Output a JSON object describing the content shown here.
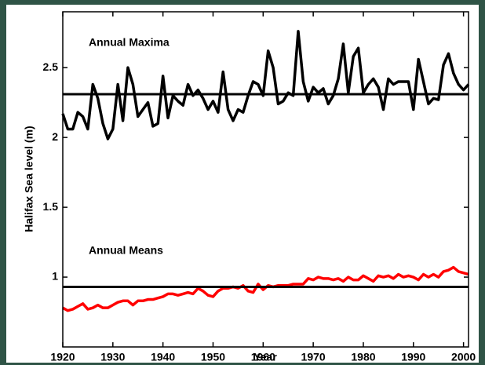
{
  "chart_data": {
    "type": "line",
    "xlabel": "Year",
    "ylabel": "Halifax Sea level (m)",
    "annotations": [
      "Annual Maxima",
      "Annual Means"
    ],
    "x": [
      1920,
      1921,
      1922,
      1923,
      1924,
      1925,
      1926,
      1927,
      1928,
      1929,
      1930,
      1931,
      1932,
      1933,
      1934,
      1935,
      1936,
      1937,
      1938,
      1939,
      1940,
      1941,
      1942,
      1943,
      1944,
      1945,
      1946,
      1947,
      1948,
      1949,
      1950,
      1951,
      1952,
      1953,
      1954,
      1955,
      1956,
      1957,
      1958,
      1959,
      1960,
      1961,
      1962,
      1963,
      1964,
      1965,
      1966,
      1967,
      1968,
      1969,
      1970,
      1971,
      1972,
      1973,
      1974,
      1975,
      1976,
      1977,
      1978,
      1979,
      1980,
      1981,
      1982,
      1983,
      1984,
      1985,
      1986,
      1987,
      1988,
      1989,
      1990,
      1991,
      1992,
      1993,
      1994,
      1995,
      1996,
      1997,
      1998,
      1999,
      2000,
      2001
    ],
    "series": [
      {
        "color": "#000000",
        "values": [
          2.17,
          2.06,
          2.06,
          2.18,
          2.15,
          2.06,
          2.38,
          2.28,
          2.1,
          1.99,
          2.06,
          2.38,
          2.12,
          2.5,
          2.38,
          2.15,
          2.2,
          2.25,
          2.08,
          2.1,
          2.44,
          2.14,
          2.3,
          2.26,
          2.23,
          2.38,
          2.3,
          2.34,
          2.28,
          2.2,
          2.26,
          2.18,
          2.47,
          2.2,
          2.12,
          2.2,
          2.18,
          2.3,
          2.4,
          2.38,
          2.3,
          2.62,
          2.5,
          2.24,
          2.26,
          2.32,
          2.3,
          2.76,
          2.4,
          2.26,
          2.36,
          2.32,
          2.35,
          2.24,
          2.3,
          2.42,
          2.67,
          2.32,
          2.58,
          2.64,
          2.32,
          2.38,
          2.42,
          2.36,
          2.2,
          2.42,
          2.38,
          2.4,
          2.4,
          2.4,
          2.2,
          2.56,
          2.4,
          2.24,
          2.28,
          2.27,
          2.52,
          2.6,
          2.46,
          2.38,
          2.34,
          2.38
        ]
      },
      {
        "color": "#ff0000",
        "values": [
          0.78,
          0.76,
          0.77,
          0.79,
          0.81,
          0.77,
          0.78,
          0.8,
          0.78,
          0.78,
          0.8,
          0.82,
          0.83,
          0.83,
          0.8,
          0.83,
          0.83,
          0.84,
          0.84,
          0.85,
          0.86,
          0.88,
          0.88,
          0.87,
          0.88,
          0.89,
          0.88,
          0.92,
          0.9,
          0.87,
          0.86,
          0.9,
          0.92,
          0.92,
          0.93,
          0.92,
          0.94,
          0.9,
          0.89,
          0.95,
          0.91,
          0.94,
          0.93,
          0.94,
          0.94,
          0.94,
          0.95,
          0.95,
          0.95,
          0.99,
          0.98,
          1.0,
          0.99,
          0.99,
          0.98,
          0.99,
          0.97,
          1.0,
          0.98,
          0.98,
          1.01,
          0.99,
          0.97,
          1.01,
          1.0,
          1.01,
          0.99,
          1.02,
          1.0,
          1.01,
          1.0,
          0.98,
          1.02,
          1.0,
          1.02,
          1.0,
          1.04,
          1.05,
          1.07,
          1.04,
          1.03,
          1.02
        ]
      }
    ],
    "hlines": [
      2.31,
      0.93
    ],
    "hline_color": "#000000",
    "xlim": [
      1920,
      2001
    ],
    "xticks": [
      1920,
      1930,
      1940,
      1950,
      1960,
      1970,
      1980,
      1990,
      2000
    ],
    "ylim": [
      0.5,
      2.9
    ],
    "yticks": [
      1,
      1.5,
      2,
      2.5
    ]
  }
}
